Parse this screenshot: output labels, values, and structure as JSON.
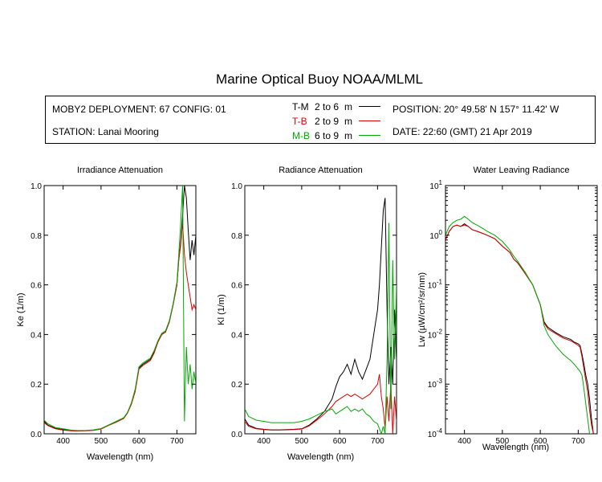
{
  "page": {
    "title": "Marine Optical Buoy NOAA/MLML"
  },
  "info": {
    "deployment": "MOBY2 DEPLOYMENT: 67 CONFIG: 01",
    "station": "STATION: Lanai Mooring",
    "position": "POSITION: 20° 49.58' N   157° 11.42' W",
    "date": "DATE: 22:60 (GMT) 21 Apr 2019"
  },
  "legend": [
    {
      "code": "T-M",
      "range": "2 to 6",
      "unit": "m",
      "color": "#000000"
    },
    {
      "code": "T-B",
      "range": "2 to 9",
      "unit": "m",
      "color": "#dd0000"
    },
    {
      "code": "M-B",
      "range": "6 to 9",
      "unit": "m",
      "color": "#00aa00"
    }
  ],
  "chart_data": [
    {
      "type": "line",
      "title": "Irradiance Attenuation",
      "xlabel": "Wavelength (nm)",
      "ylabel": "Ke  (1/m)",
      "xlim": [
        350,
        750
      ],
      "ylim": [
        0,
        1
      ],
      "xticks": [
        400,
        500,
        600,
        700
      ],
      "yticks": [
        0,
        0.2,
        0.4,
        0.6,
        0.8,
        1.0
      ],
      "ytick_labels": [
        "0.0",
        "0.2",
        "0.4",
        "0.6",
        "0.8",
        "1.0"
      ],
      "series": [
        {
          "color": "#000000",
          "x": [
            350,
            360,
            380,
            400,
            420,
            440,
            460,
            480,
            500,
            520,
            540,
            560,
            570,
            580,
            590,
            600,
            610,
            620,
            630,
            640,
            650,
            660,
            670,
            680,
            690,
            700,
            705,
            710,
            715,
            720,
            725,
            730,
            735,
            740,
            745,
            750
          ],
          "y": [
            0.05,
            0.035,
            0.022,
            0.017,
            0.013,
            0.012,
            0.013,
            0.015,
            0.02,
            0.035,
            0.048,
            0.063,
            0.085,
            0.12,
            0.175,
            0.265,
            0.28,
            0.29,
            0.3,
            0.33,
            0.37,
            0.4,
            0.41,
            0.45,
            0.52,
            0.6,
            0.7,
            0.77,
            0.88,
            1.0,
            0.95,
            0.82,
            0.7,
            0.78,
            0.72,
            0.8
          ]
        },
        {
          "color": "#dd0000",
          "x": [
            350,
            360,
            380,
            400,
            420,
            440,
            460,
            480,
            500,
            520,
            540,
            560,
            570,
            580,
            590,
            600,
            610,
            620,
            630,
            640,
            650,
            660,
            670,
            680,
            690,
            700,
            705,
            710,
            715,
            720,
            725,
            730,
            735,
            740,
            745,
            750
          ],
          "y": [
            0.045,
            0.033,
            0.02,
            0.015,
            0.012,
            0.011,
            0.012,
            0.014,
            0.019,
            0.034,
            0.047,
            0.062,
            0.084,
            0.12,
            0.17,
            0.26,
            0.275,
            0.285,
            0.295,
            0.325,
            0.37,
            0.4,
            0.41,
            0.45,
            0.52,
            0.6,
            0.7,
            0.76,
            0.85,
            0.72,
            0.65,
            0.6,
            0.55,
            0.5,
            0.52,
            0.5
          ]
        },
        {
          "color": "#00aa00",
          "x": [
            350,
            360,
            380,
            400,
            420,
            440,
            460,
            480,
            500,
            520,
            540,
            560,
            570,
            580,
            590,
            600,
            610,
            620,
            630,
            640,
            650,
            660,
            670,
            680,
            690,
            700,
            705,
            710,
            715,
            720,
            725,
            730,
            735,
            740,
            745,
            750
          ],
          "y": [
            0.055,
            0.04,
            0.025,
            0.02,
            0.015,
            0.013,
            0.014,
            0.016,
            0.021,
            0.036,
            0.05,
            0.065,
            0.087,
            0.125,
            0.18,
            0.27,
            0.285,
            0.295,
            0.305,
            0.335,
            0.375,
            0.405,
            0.415,
            0.455,
            0.525,
            0.61,
            0.72,
            0.85,
            1.0,
            0.05,
            0.35,
            0.2,
            0.28,
            0.18,
            0.25,
            0.2
          ]
        }
      ]
    },
    {
      "type": "line",
      "title": "Radiance Attenuation",
      "xlabel": "Wavelength (nm)",
      "ylabel": "Kl  (1/m)",
      "xlim": [
        350,
        750
      ],
      "ylim": [
        0,
        1
      ],
      "xticks": [
        400,
        500,
        600,
        700
      ],
      "yticks": [
        0,
        0.2,
        0.4,
        0.6,
        0.8,
        1.0
      ],
      "ytick_labels": [
        "0.0",
        "0.2",
        "0.4",
        "0.6",
        "0.8",
        "1.0"
      ],
      "series": [
        {
          "color": "#000000",
          "x": [
            350,
            360,
            380,
            400,
            420,
            440,
            460,
            480,
            500,
            520,
            540,
            560,
            580,
            590,
            600,
            610,
            620,
            630,
            640,
            650,
            660,
            670,
            680,
            690,
            700,
            705,
            710,
            715,
            720,
            725,
            730,
            735,
            740,
            745,
            750
          ],
          "y": [
            0.06,
            0.035,
            0.022,
            0.018,
            0.016,
            0.016,
            0.017,
            0.018,
            0.02,
            0.035,
            0.06,
            0.09,
            0.14,
            0.19,
            0.23,
            0.25,
            0.28,
            0.24,
            0.3,
            0.25,
            0.22,
            0.26,
            0.3,
            0.4,
            0.5,
            0.6,
            0.75,
            0.9,
            0.95,
            0.5,
            0.2,
            0.35,
            0.2,
            0.5,
            0.3
          ]
        },
        {
          "color": "#dd0000",
          "x": [
            350,
            360,
            380,
            400,
            420,
            440,
            460,
            480,
            500,
            520,
            540,
            560,
            580,
            590,
            600,
            610,
            620,
            630,
            640,
            650,
            660,
            670,
            680,
            690,
            700,
            705,
            710,
            715,
            720,
            725,
            730,
            735,
            740,
            745,
            750
          ],
          "y": [
            0.05,
            0.03,
            0.02,
            0.017,
            0.015,
            0.015,
            0.016,
            0.017,
            0.019,
            0.032,
            0.055,
            0.08,
            0.11,
            0.13,
            0.14,
            0.15,
            0.16,
            0.15,
            0.16,
            0.15,
            0.14,
            0.15,
            0.16,
            0.18,
            0.2,
            0.24,
            0.15,
            0.1,
            0.02,
            0.15,
            0.05,
            0.2,
            0.0,
            0.15,
            0.05
          ]
        },
        {
          "color": "#00aa00",
          "x": [
            350,
            360,
            380,
            400,
            420,
            440,
            460,
            480,
            500,
            520,
            540,
            560,
            580,
            590,
            600,
            610,
            620,
            630,
            640,
            650,
            660,
            670,
            680,
            690,
            700,
            705,
            710,
            715,
            720,
            725,
            730,
            735,
            740,
            745,
            750
          ],
          "y": [
            0.1,
            0.07,
            0.055,
            0.05,
            0.045,
            0.045,
            0.045,
            0.045,
            0.05,
            0.06,
            0.075,
            0.09,
            0.1,
            0.08,
            0.09,
            0.1,
            0.11,
            0.09,
            0.1,
            0.09,
            0.1,
            0.08,
            0.07,
            0.05,
            0.04,
            0.02,
            0.0,
            0.03,
            0.0,
            0.3,
            0.85,
            0.1,
            0.7,
            0.3,
            0.6
          ]
        }
      ]
    },
    {
      "type": "line",
      "title": "Water Leaving Radiance",
      "xlabel": "Wavelength (nm)",
      "ylabel": "Lw  (µW/cm²/sr/nm)",
      "xlim": [
        350,
        750
      ],
      "ylim": [
        0.0001,
        10
      ],
      "yscale": "log",
      "xticks": [
        400,
        500,
        600,
        700
      ],
      "yticks": [
        0.0001,
        0.001,
        0.01,
        0.1,
        1,
        10
      ],
      "ytick_labels": [
        {
          "base": "10",
          "exp": "-4"
        },
        {
          "base": "10",
          "exp": "-3"
        },
        {
          "base": "10",
          "exp": "-2"
        },
        {
          "base": "10",
          "exp": "-1"
        },
        {
          "base": "10",
          "exp": "0"
        },
        {
          "base": "10",
          "exp": "1"
        }
      ],
      "series": [
        {
          "color": "#000000",
          "x": [
            350,
            360,
            370,
            380,
            390,
            400,
            410,
            420,
            440,
            460,
            480,
            500,
            520,
            530,
            540,
            560,
            580,
            600,
            610,
            620,
            640,
            660,
            680,
            690,
            700,
            705,
            710,
            715,
            720,
            725,
            730,
            735,
            740
          ],
          "y": [
            0.8,
            1.2,
            1.5,
            1.6,
            1.5,
            1.7,
            1.5,
            1.3,
            1.15,
            1.0,
            0.85,
            0.6,
            0.45,
            0.33,
            0.28,
            0.17,
            0.1,
            0.04,
            0.018,
            0.014,
            0.011,
            0.009,
            0.008,
            0.007,
            0.0065,
            0.006,
            0.004,
            0.0025,
            0.0015,
            0.001,
            0.0005,
            0.0002,
            8e-05
          ]
        },
        {
          "color": "#dd0000",
          "x": [
            350,
            360,
            370,
            380,
            390,
            400,
            410,
            420,
            440,
            460,
            480,
            500,
            520,
            530,
            540,
            560,
            580,
            600,
            610,
            620,
            640,
            660,
            680,
            690,
            700,
            705,
            710,
            715,
            720,
            725,
            730,
            735,
            740
          ],
          "y": [
            0.8,
            1.2,
            1.5,
            1.6,
            1.5,
            1.6,
            1.5,
            1.3,
            1.15,
            1.0,
            0.85,
            0.6,
            0.45,
            0.33,
            0.28,
            0.17,
            0.1,
            0.04,
            0.017,
            0.013,
            0.0105,
            0.0085,
            0.0075,
            0.0068,
            0.006,
            0.0055,
            0.0035,
            0.002,
            0.0012,
            0.0007,
            0.0003,
            0.00015,
            8e-05
          ]
        },
        {
          "color": "#00aa00",
          "x": [
            350,
            360,
            370,
            380,
            390,
            400,
            410,
            420,
            440,
            460,
            480,
            500,
            520,
            530,
            540,
            560,
            580,
            600,
            610,
            620,
            640,
            660,
            680,
            690,
            700,
            705,
            710,
            715,
            720,
            725,
            730,
            735
          ],
          "y": [
            1.0,
            1.5,
            1.8,
            2.0,
            2.1,
            2.4,
            2.1,
            1.8,
            1.5,
            1.2,
            1.0,
            0.75,
            0.5,
            0.38,
            0.3,
            0.18,
            0.1,
            0.04,
            0.015,
            0.01,
            0.006,
            0.004,
            0.003,
            0.0025,
            0.002,
            0.0018,
            0.0015,
            0.0008,
            0.0004,
            0.0002,
            0.0001,
            5e-05
          ]
        }
      ]
    }
  ]
}
